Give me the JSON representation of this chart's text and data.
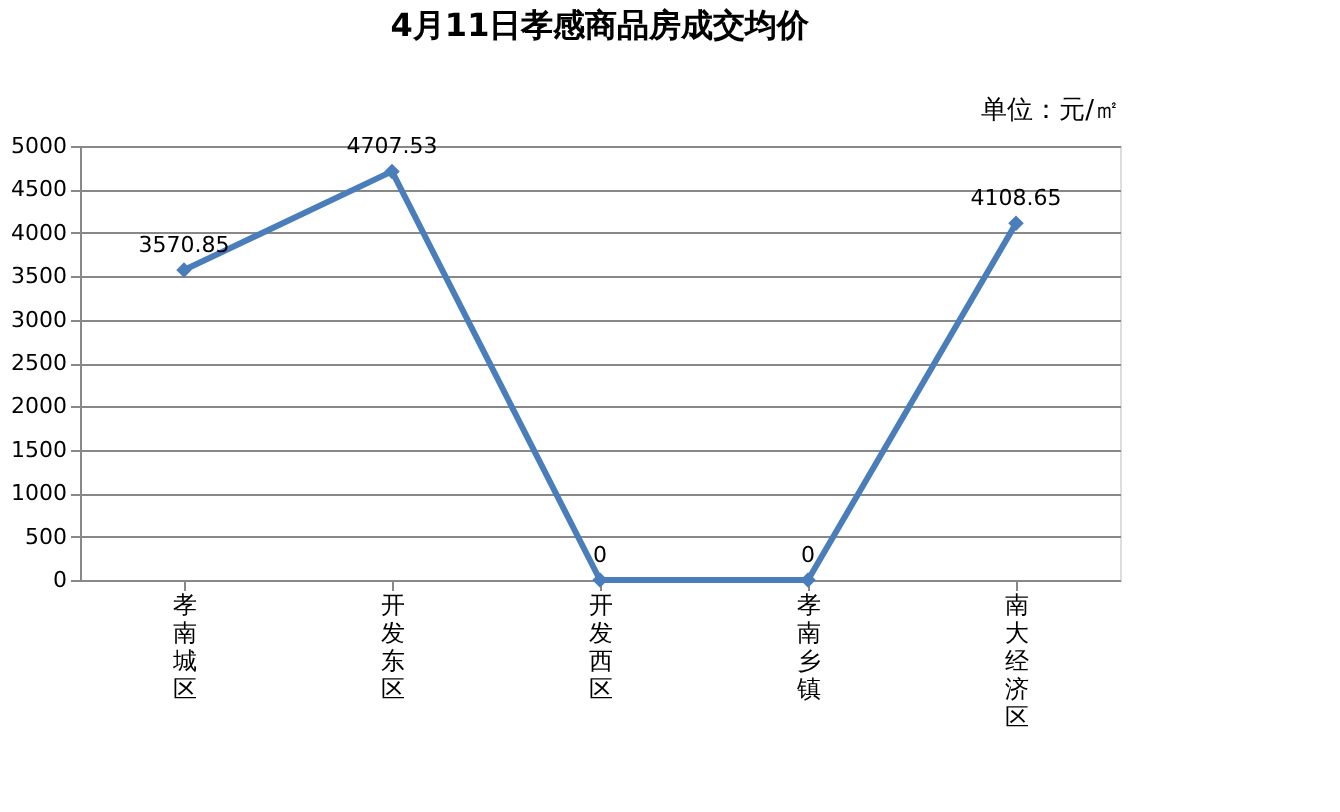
{
  "chart_data": {
    "type": "line",
    "title": "4月11日孝感商品房成交均价",
    "annotations": [
      "单位：元/㎡"
    ],
    "categories": [
      "孝南城区",
      "开发东区",
      "开发西区",
      "孝南乡镇",
      "南大经济区"
    ],
    "series": [
      {
        "color": "#4a7ebb",
        "values": [
          3570.85,
          4707.53,
          0,
          0,
          4108.65
        ]
      }
    ],
    "ylim": [
      0,
      5000
    ],
    "yticks": [
      0,
      500,
      1000,
      1500,
      2000,
      2500,
      3000,
      3500,
      4000,
      4500,
      5000
    ],
    "grid": "y",
    "legend": false,
    "marker": "diamond",
    "line_style": "solid",
    "data_labels": true
  }
}
